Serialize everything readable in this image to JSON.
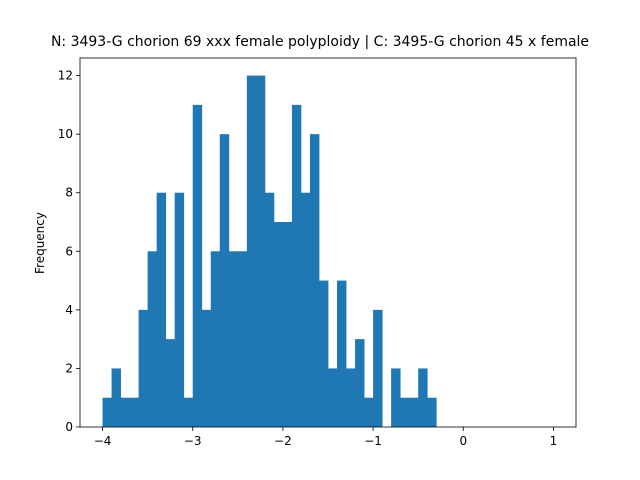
{
  "chart_data": {
    "type": "bar",
    "title": "N: 3493-G chorion 69 xxx female polyploidy | C: 3495-G chorion 45 x female",
    "xlabel": "",
    "ylabel": "Frequency",
    "xlim": [
      -4.25,
      1.25
    ],
    "ylim": [
      0,
      12.6
    ],
    "x_ticks": [
      -4,
      -3,
      -2,
      -1,
      0,
      1
    ],
    "y_ticks": [
      0,
      2,
      4,
      6,
      8,
      10,
      12
    ],
    "grid": false,
    "bar_color": "#1f77b4",
    "bin_width": 0.1,
    "bins_start": [
      -4.0,
      -3.9,
      -3.8,
      -3.7,
      -3.6,
      -3.5,
      -3.4,
      -3.3,
      -3.2,
      -3.1,
      -3.0,
      -2.9,
      -2.8,
      -2.7,
      -2.6,
      -2.5,
      -2.4,
      -2.3,
      -2.2,
      -2.1,
      -2.0,
      -1.9,
      -1.8,
      -1.7,
      -1.6,
      -1.5,
      -1.4,
      -1.3,
      -1.2,
      -1.1,
      -1.0,
      -0.9,
      -0.8,
      -0.7,
      -0.6,
      -0.5,
      -0.4
    ],
    "counts": [
      1,
      2,
      1,
      1,
      4,
      6,
      8,
      3,
      8,
      1,
      11,
      4,
      6,
      10,
      6,
      6,
      12,
      12,
      8,
      7,
      7,
      11,
      8,
      10,
      5,
      2,
      5,
      2,
      3,
      1,
      4,
      0,
      2,
      1,
      1,
      2,
      1
    ]
  }
}
